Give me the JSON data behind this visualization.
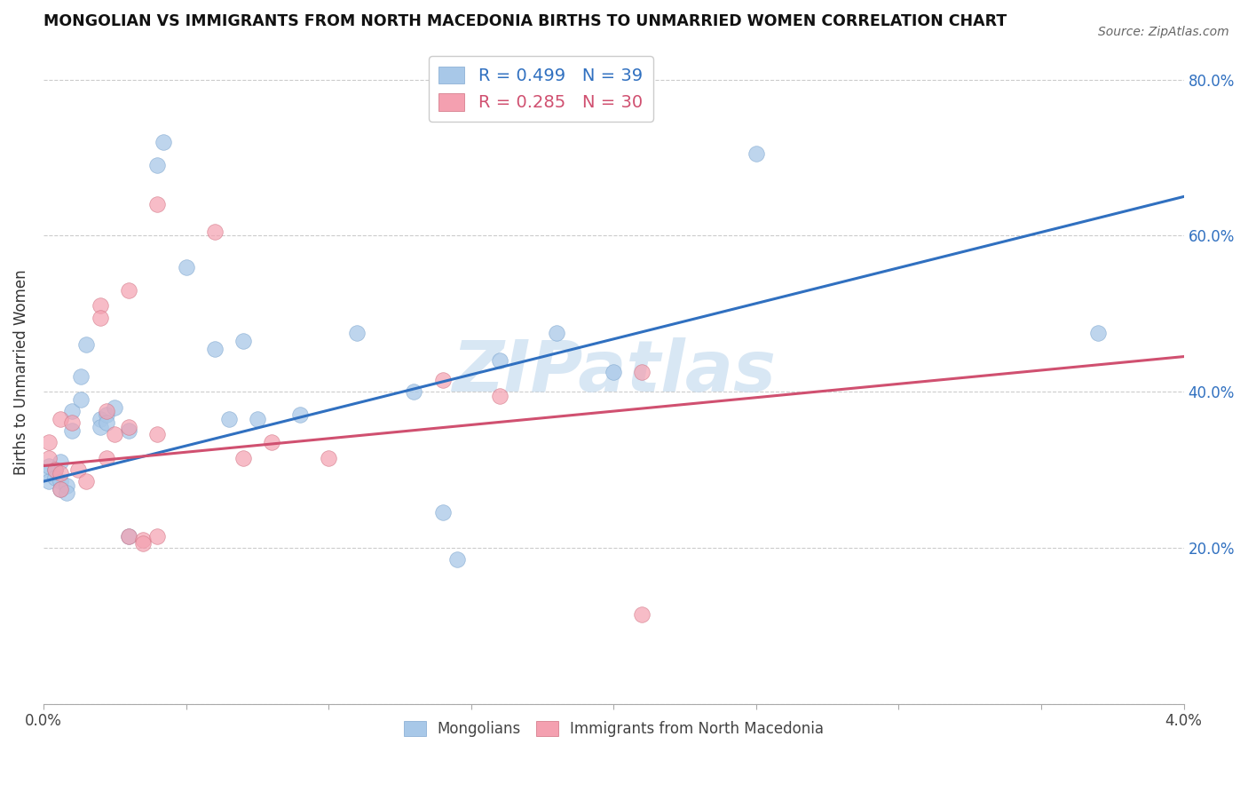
{
  "title": "MONGOLIAN VS IMMIGRANTS FROM NORTH MACEDONIA BIRTHS TO UNMARRIED WOMEN CORRELATION CHART",
  "source": "Source: ZipAtlas.com",
  "ylabel": "Births to Unmarried Women",
  "xlim": [
    0.0,
    0.04
  ],
  "ylim": [
    0.0,
    0.85
  ],
  "ytick_labels": [
    "",
    "20.0%",
    "40.0%",
    "60.0%",
    "80.0%"
  ],
  "ytick_values": [
    0.0,
    0.2,
    0.4,
    0.6,
    0.8
  ],
  "xtick_labels": [
    "0.0%",
    "",
    "",
    "",
    "",
    "",
    "",
    "",
    "4.0%"
  ],
  "xtick_values": [
    0.0,
    0.005,
    0.01,
    0.015,
    0.02,
    0.025,
    0.03,
    0.035,
    0.04
  ],
  "blue_color": "#a8c8e8",
  "pink_color": "#f4a0b0",
  "blue_line_color": "#3070c0",
  "pink_line_color": "#d05070",
  "watermark_color": "#c8ddf0",
  "mongolian_points": [
    [
      0.0002,
      0.295
    ],
    [
      0.0002,
      0.285
    ],
    [
      0.0002,
      0.305
    ],
    [
      0.0004,
      0.3
    ],
    [
      0.0004,
      0.29
    ],
    [
      0.0006,
      0.31
    ],
    [
      0.0006,
      0.285
    ],
    [
      0.0006,
      0.275
    ],
    [
      0.0008,
      0.28
    ],
    [
      0.0008,
      0.27
    ],
    [
      0.001,
      0.35
    ],
    [
      0.001,
      0.375
    ],
    [
      0.0013,
      0.42
    ],
    [
      0.0013,
      0.39
    ],
    [
      0.0015,
      0.46
    ],
    [
      0.002,
      0.365
    ],
    [
      0.002,
      0.355
    ],
    [
      0.0022,
      0.37
    ],
    [
      0.0022,
      0.36
    ],
    [
      0.0025,
      0.38
    ],
    [
      0.003,
      0.35
    ],
    [
      0.004,
      0.69
    ],
    [
      0.0042,
      0.72
    ],
    [
      0.005,
      0.56
    ],
    [
      0.006,
      0.455
    ],
    [
      0.0065,
      0.365
    ],
    [
      0.007,
      0.465
    ],
    [
      0.0075,
      0.365
    ],
    [
      0.009,
      0.37
    ],
    [
      0.011,
      0.475
    ],
    [
      0.013,
      0.4
    ],
    [
      0.014,
      0.245
    ],
    [
      0.0145,
      0.185
    ],
    [
      0.016,
      0.44
    ],
    [
      0.018,
      0.475
    ],
    [
      0.02,
      0.425
    ],
    [
      0.025,
      0.705
    ],
    [
      0.037,
      0.475
    ],
    [
      0.003,
      0.215
    ]
  ],
  "macedonian_points": [
    [
      0.0002,
      0.335
    ],
    [
      0.0002,
      0.315
    ],
    [
      0.0004,
      0.3
    ],
    [
      0.0006,
      0.365
    ],
    [
      0.0006,
      0.295
    ],
    [
      0.0006,
      0.275
    ],
    [
      0.001,
      0.36
    ],
    [
      0.0012,
      0.3
    ],
    [
      0.0015,
      0.285
    ],
    [
      0.002,
      0.51
    ],
    [
      0.002,
      0.495
    ],
    [
      0.0022,
      0.375
    ],
    [
      0.0022,
      0.315
    ],
    [
      0.0025,
      0.345
    ],
    [
      0.003,
      0.53
    ],
    [
      0.003,
      0.355
    ],
    [
      0.003,
      0.215
    ],
    [
      0.0035,
      0.21
    ],
    [
      0.0035,
      0.205
    ],
    [
      0.004,
      0.64
    ],
    [
      0.004,
      0.345
    ],
    [
      0.004,
      0.215
    ],
    [
      0.006,
      0.605
    ],
    [
      0.007,
      0.315
    ],
    [
      0.008,
      0.335
    ],
    [
      0.01,
      0.315
    ],
    [
      0.014,
      0.415
    ],
    [
      0.016,
      0.395
    ],
    [
      0.021,
      0.425
    ],
    [
      0.021,
      0.115
    ]
  ],
  "blue_line_x": [
    0.0,
    0.04
  ],
  "blue_line_y": [
    0.285,
    0.65
  ],
  "pink_line_x": [
    0.0,
    0.04
  ],
  "pink_line_y": [
    0.305,
    0.445
  ]
}
